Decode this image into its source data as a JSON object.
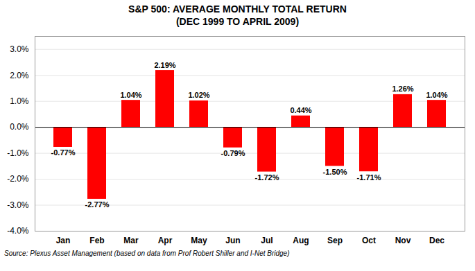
{
  "chart_data": {
    "type": "bar",
    "title": "S&P 500: AVERAGE MONTHLY TOTAL RETURN",
    "subtitle": "(DEC 1999 TO APRIL 2009)",
    "caption": "Source: Plexus Asset Management (based on data from Prof Robert Shiller and I-Net Bridge)",
    "categories": [
      "Jan",
      "Feb",
      "Mar",
      "Apr",
      "May",
      "Jun",
      "Jul",
      "Aug",
      "Sep",
      "Oct",
      "Nov",
      "Dec"
    ],
    "values": [
      -0.77,
      -2.77,
      1.04,
      2.19,
      1.02,
      -0.79,
      -1.72,
      0.44,
      -1.5,
      -1.71,
      1.26,
      1.04
    ],
    "value_labels": [
      "-0.77%",
      "-2.77%",
      "1.04%",
      "2.19%",
      "1.02%",
      "-0.79%",
      "-1.72%",
      "0.44%",
      "-1.50%",
      "-1.71%",
      "1.26%",
      "1.04%"
    ],
    "data_labels": true,
    "color": "#FF0000",
    "ylim": [
      -4.0,
      3.5
    ],
    "yticks": [
      {
        "value": -4.0,
        "label": "-4.0%"
      },
      {
        "value": -3.0,
        "label": "-3.0%"
      },
      {
        "value": -2.0,
        "label": "-2.0%"
      },
      {
        "value": -1.0,
        "label": "-1.0%"
      },
      {
        "value": 0.0,
        "label": "0.0%"
      },
      {
        "value": 1.0,
        "label": "1.0%"
      },
      {
        "value": 2.0,
        "label": "2.0%"
      },
      {
        "value": 3.0,
        "label": "3.0%"
      }
    ],
    "grid": true
  }
}
